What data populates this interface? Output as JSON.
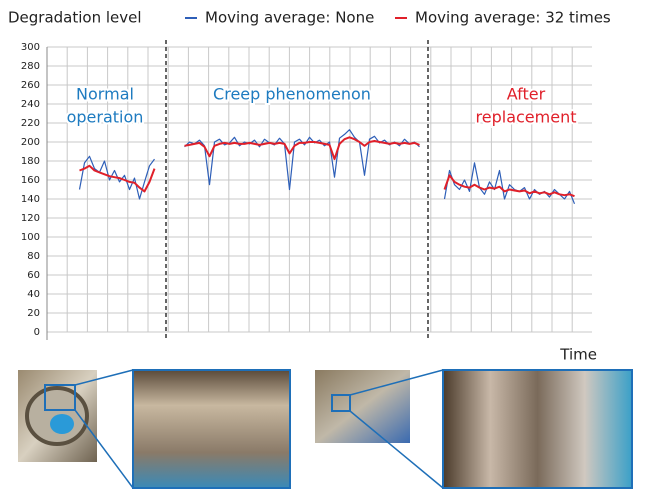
{
  "chart_data": {
    "type": "line",
    "y_label": "Degradation level",
    "x_label": "Time",
    "ylim": [
      0,
      300
    ],
    "yticks": [
      0,
      20,
      40,
      60,
      80,
      100,
      120,
      140,
      160,
      180,
      200,
      220,
      240,
      260,
      280,
      300
    ],
    "grid": true,
    "series": [
      {
        "name": "Moving average: None",
        "color": "#2e5fb8",
        "values": [
          null,
          null,
          null,
          null,
          null,
          null,
          150,
          178,
          185,
          172,
          168,
          180,
          160,
          170,
          158,
          165,
          150,
          162,
          140,
          158,
          175,
          182,
          null,
          null,
          null,
          null,
          null,
          195,
          200,
          198,
          202,
          196,
          155,
          200,
          203,
          197,
          199,
          205,
          196,
          200,
          198,
          202,
          195,
          203,
          199,
          197,
          204,
          198,
          150,
          200,
          203,
          197,
          205,
          199,
          202,
          196,
          200,
          163,
          204,
          208,
          213,
          205,
          200,
          165,
          203,
          206,
          199,
          202,
          197,
          200,
          196,
          203,
          198,
          200,
          195,
          null,
          null,
          null,
          null,
          140,
          170,
          155,
          150,
          160,
          148,
          178,
          152,
          145,
          158,
          150,
          170,
          140,
          155,
          150,
          148,
          152,
          140,
          150,
          145,
          148,
          142,
          150,
          145,
          140,
          148,
          135,
          null,
          null,
          null
        ]
      },
      {
        "name": "Moving average: 32 times",
        "color": "#e0202a",
        "values": [
          null,
          null,
          null,
          null,
          null,
          null,
          170,
          172,
          175,
          170,
          168,
          166,
          164,
          163,
          162,
          160,
          158,
          157,
          152,
          148,
          158,
          172,
          null,
          null,
          null,
          null,
          null,
          196,
          197,
          198,
          199,
          195,
          185,
          196,
          198,
          199,
          198,
          199,
          198,
          198,
          199,
          198,
          197,
          198,
          199,
          198,
          199,
          198,
          188,
          196,
          199,
          199,
          200,
          200,
          199,
          198,
          197,
          182,
          198,
          203,
          205,
          203,
          200,
          196,
          200,
          201,
          200,
          199,
          198,
          199,
          198,
          199,
          198,
          199,
          197,
          null,
          null,
          null,
          null,
          150,
          165,
          158,
          155,
          153,
          152,
          155,
          152,
          150,
          152,
          151,
          153,
          148,
          150,
          149,
          148,
          149,
          146,
          148,
          146,
          147,
          145,
          147,
          145,
          144,
          145,
          143,
          null,
          null,
          null
        ]
      }
    ],
    "annotations": [
      {
        "lines": [
          "Normal",
          "operation"
        ],
        "color": "#1e7bc0"
      },
      {
        "lines": [
          "Creep phenomenon"
        ],
        "color": "#1e7bc0"
      },
      {
        "lines": [
          "After",
          "replacement"
        ],
        "color": "#e0202a"
      }
    ]
  }
}
